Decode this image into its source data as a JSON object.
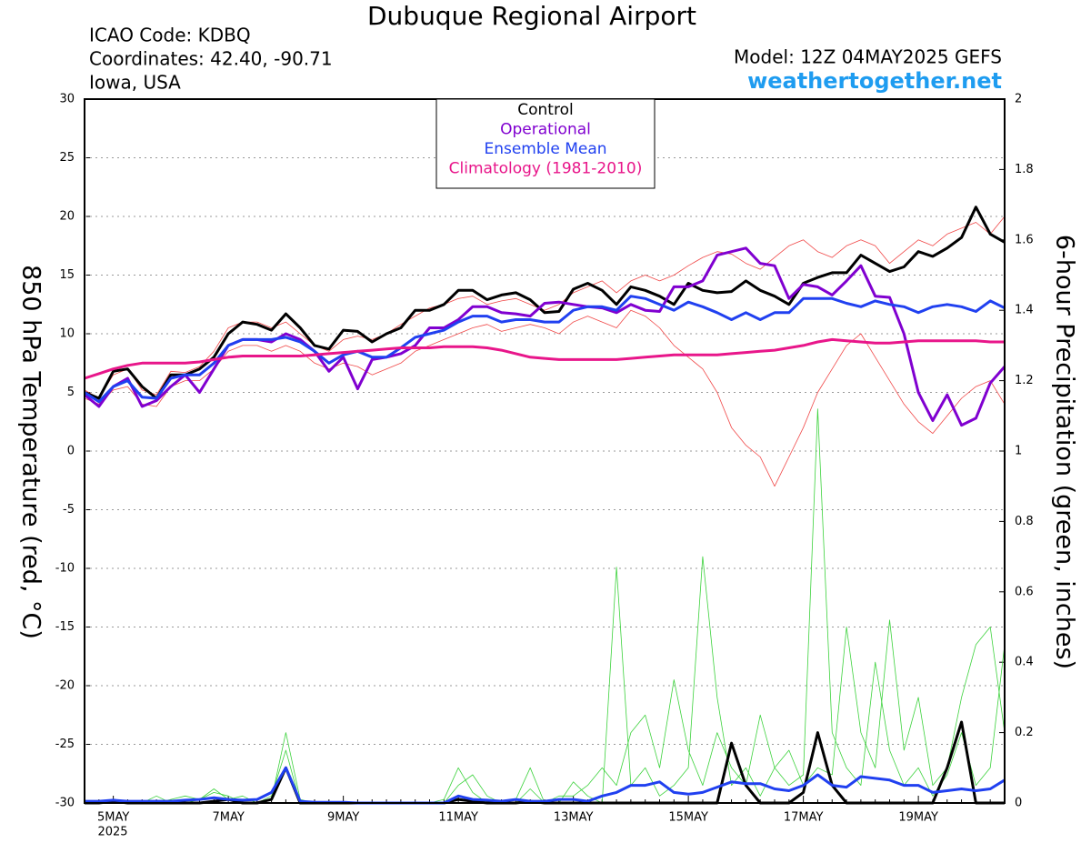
{
  "chart_data": {
    "type": "line",
    "title": "Dubuque Regional Airport",
    "info": [
      "ICAO Code: KDBQ",
      "Coordinates: 42.40, -90.71",
      "Iowa, USA"
    ],
    "model": "Model: 12Z 04MAY2025 GEFS",
    "source": "weathertogether.net",
    "ylabel": "850 hPa Temperature (red, °C)",
    "y2label": "6-hour Precipitation (green, inches)",
    "year_label": "2025",
    "grid": true,
    "ylim": [
      -30,
      30
    ],
    "yticks": [
      -30,
      -25,
      -20,
      -15,
      -10,
      -5,
      0,
      5,
      10,
      15,
      20,
      25,
      30
    ],
    "y2lim": [
      0,
      2
    ],
    "y2ticks": [
      0,
      0.2,
      0.4,
      0.6,
      0.8,
      1,
      1.2,
      1.4,
      1.6,
      1.8,
      2
    ],
    "categories": [
      null,
      null,
      "5MAY",
      null,
      null,
      null,
      null,
      null,
      null,
      null,
      "7MAY",
      null,
      null,
      null,
      null,
      null,
      null,
      null,
      "9MAY",
      null,
      null,
      null,
      null,
      null,
      null,
      null,
      "11MAY",
      null,
      null,
      null,
      null,
      null,
      null,
      null,
      "13MAY",
      null,
      null,
      null,
      null,
      null,
      null,
      null,
      "15MAY",
      null,
      null,
      null,
      null,
      null,
      null,
      null,
      "17MAY",
      null,
      null,
      null,
      null,
      null,
      null,
      null,
      "19MAY",
      null,
      null,
      null,
      null,
      null,
      null
    ],
    "members": [
      {
        "color": "#f04848",
        "values": [
          5.2,
          4.5,
          6.5,
          7,
          5.2,
          4.8,
          6.8,
          6.7,
          7.2,
          8.5,
          10.5,
          11,
          11,
          10.5,
          11,
          10,
          9,
          8.5,
          9.5,
          9.8,
          9.5,
          10,
          10.8,
          11.5,
          12.2,
          12.5,
          13,
          13.2,
          12.5,
          12.8,
          13,
          12.5,
          12,
          12.5,
          13.5,
          14,
          14.5,
          13.5,
          14.5,
          15,
          14.5,
          15,
          15.8,
          16.5,
          17,
          16.8,
          16,
          15.5,
          16.5,
          17.5,
          18,
          17,
          16.5,
          17.5,
          18,
          17.5,
          16,
          17,
          18,
          17.5,
          18.5,
          19,
          19.5,
          18.5,
          20
        ]
      },
      {
        "color": "#f04848",
        "values": [
          4.5,
          4,
          5.2,
          5.5,
          4,
          3.8,
          5.5,
          6,
          6,
          7,
          8.5,
          9,
          9,
          8.5,
          9,
          8.5,
          7.5,
          7,
          7.5,
          7.2,
          6.5,
          7,
          7.5,
          8.5,
          9,
          9.5,
          10,
          10.5,
          10.8,
          10.2,
          10.5,
          10.8,
          10.5,
          10,
          11,
          11.5,
          11,
          10.5,
          12,
          11.5,
          10.5,
          9,
          8,
          7,
          5,
          2,
          0.5,
          -0.5,
          -3,
          -0.5,
          2,
          5,
          7,
          9,
          10,
          8,
          6,
          4,
          2.5,
          1.5,
          3,
          4.5,
          5.5,
          6,
          4
        ]
      },
      {
        "color": "#3cd23c",
        "axis": "y2",
        "values": [
          0,
          0,
          0.01,
          0,
          0,
          0.02,
          0,
          0,
          0.01,
          0.03,
          0.02,
          0,
          0,
          0.02,
          0.15,
          0,
          0,
          0,
          0,
          0,
          0,
          0,
          0,
          0,
          0,
          0.01,
          0.1,
          0.03,
          0,
          0,
          0,
          0.04,
          0,
          0,
          0.06,
          0.02,
          0,
          0.67,
          0.05,
          0.1,
          0.02,
          0.05,
          0.1,
          0.7,
          0.3,
          0.05,
          0.1,
          0.02,
          0.1,
          0.05,
          0.08,
          1.12,
          0.2,
          0.1,
          0.05,
          0.4,
          0.15,
          0.05,
          0.1,
          0.02,
          0.08,
          0.2,
          0.05,
          0.1,
          0.45
        ]
      },
      {
        "color": "#3cd23c",
        "axis": "y2",
        "values": [
          0,
          0,
          0,
          0,
          0,
          0,
          0.01,
          0.02,
          0.01,
          0.04,
          0.01,
          0.02,
          0,
          0.01,
          0.2,
          0.01,
          0,
          0,
          0,
          0,
          0,
          0,
          0,
          0,
          0,
          0,
          0.05,
          0.08,
          0.02,
          0,
          0.01,
          0.1,
          0,
          0.02,
          0.02,
          0.05,
          0.1,
          0.05,
          0.2,
          0.25,
          0.1,
          0.35,
          0.15,
          0.05,
          0.2,
          0.1,
          0.05,
          0.25,
          0.1,
          0.15,
          0.05,
          0.1,
          0.08,
          0.5,
          0.2,
          0.1,
          0.52,
          0.15,
          0.3,
          0.05,
          0.1,
          0.3,
          0.45,
          0.5,
          0.2
        ]
      }
    ],
    "series": [
      {
        "name": "Control",
        "color": "#000000",
        "values": [
          5,
          4.5,
          6.8,
          7,
          5.5,
          4.5,
          6.5,
          6.5,
          7,
          8,
          10,
          11,
          10.8,
          10.3,
          11.7,
          10.5,
          9,
          8.7,
          10.3,
          10.2,
          9.3,
          10,
          10.5,
          12,
          12,
          12.5,
          13.7,
          13.7,
          12.9,
          13.3,
          13.5,
          12.9,
          11.8,
          11.9,
          13.8,
          14.3,
          13.7,
          12.5,
          14,
          13.7,
          13.2,
          12.5,
          14.3,
          13.7,
          13.5,
          13.6,
          14.5,
          13.7,
          13.2,
          12.5,
          14.3,
          14.8,
          15.2,
          15.2,
          16.7,
          16,
          15.3,
          15.7,
          17,
          16.6,
          17.3,
          18.2,
          20.8,
          18.5,
          17.8
        ]
      },
      {
        "name": "Operational",
        "color": "#8000d0",
        "values": [
          4.8,
          3.8,
          5.5,
          6.2,
          3.8,
          4.3,
          5.5,
          6.5,
          5,
          7,
          9,
          9.5,
          9.5,
          9.3,
          10,
          9.5,
          8.5,
          6.8,
          8,
          5.3,
          7.8,
          8,
          8.3,
          9,
          10.5,
          10.5,
          11.2,
          12.3,
          12.3,
          11.8,
          11.7,
          11.5,
          12.6,
          12.7,
          12.5,
          12.3,
          12.2,
          11.8,
          12.5,
          12,
          11.9,
          14,
          14,
          14.5,
          16.7,
          17,
          17.3,
          16,
          15.8,
          13,
          14.2,
          14,
          13.3,
          14.5,
          15.8,
          13.2,
          13.1,
          10,
          5,
          2.6,
          4.8,
          2.2,
          2.8,
          5.8,
          7.2
        ]
      },
      {
        "name": "Ensemble Mean",
        "color": "#2040f0",
        "values": [
          5,
          4.2,
          5.5,
          6,
          4.6,
          4.5,
          6.2,
          6.5,
          6.5,
          7.5,
          9,
          9.5,
          9.5,
          9.5,
          9.7,
          9.3,
          8.5,
          7.5,
          8.2,
          8.5,
          8,
          8,
          8.8,
          9.7,
          10,
          10.3,
          11,
          11.5,
          11.5,
          11,
          11.2,
          11.2,
          11,
          11,
          12,
          12.3,
          12.3,
          12,
          13.2,
          13,
          12.5,
          12,
          12.7,
          12.3,
          11.8,
          11.2,
          11.8,
          11.2,
          11.8,
          11.8,
          13,
          13,
          13,
          12.6,
          12.3,
          12.8,
          12.5,
          12.3,
          11.8,
          12.3,
          12.5,
          12.3,
          11.9,
          12.8,
          12.2
        ]
      },
      {
        "name": "Climatology (1981-2010)",
        "color": "#e8168a",
        "values": [
          6.2,
          6.6,
          7,
          7.3,
          7.5,
          7.5,
          7.5,
          7.5,
          7.6,
          7.8,
          8,
          8.1,
          8.1,
          8.1,
          8.1,
          8.1,
          8.2,
          8.3,
          8.4,
          8.5,
          8.6,
          8.7,
          8.8,
          8.8,
          8.8,
          8.9,
          8.9,
          8.9,
          8.8,
          8.6,
          8.3,
          8,
          7.9,
          7.8,
          7.8,
          7.8,
          7.8,
          7.8,
          7.9,
          8,
          8.1,
          8.2,
          8.2,
          8.2,
          8.2,
          8.3,
          8.4,
          8.5,
          8.6,
          8.8,
          9,
          9.3,
          9.5,
          9.4,
          9.3,
          9.2,
          9.2,
          9.3,
          9.4,
          9.4,
          9.4,
          9.4,
          9.4,
          9.3,
          9.3
        ]
      },
      {
        "color": "#000000",
        "axis": "y2",
        "values": [
          0,
          0,
          0.005,
          0,
          0,
          0,
          0,
          0,
          0,
          0.005,
          0.01,
          0,
          0,
          0.01,
          0.1,
          0,
          0,
          0,
          0,
          0,
          0,
          0,
          0,
          0,
          0,
          0,
          0.01,
          0.005,
          0,
          0,
          0,
          0.005,
          0,
          0,
          0,
          0,
          0,
          0,
          0,
          0,
          0,
          0,
          0,
          0,
          0,
          0.17,
          0.05,
          0,
          0,
          0,
          0.03,
          0.2,
          0.05,
          0,
          0,
          0,
          0,
          0,
          0,
          0,
          0.1,
          0.23,
          0,
          0,
          0
        ]
      },
      {
        "color": "#2040f0",
        "axis": "y2",
        "values": [
          0.005,
          0.005,
          0.008,
          0.005,
          0.005,
          0.005,
          0.005,
          0.008,
          0.01,
          0.015,
          0.01,
          0.008,
          0.01,
          0.03,
          0.1,
          0.005,
          0.002,
          0.002,
          0.002,
          0,
          0,
          0,
          0,
          0,
          0,
          0,
          0.02,
          0.01,
          0.008,
          0.005,
          0.01,
          0.005,
          0.005,
          0.01,
          0.01,
          0.005,
          0.02,
          0.03,
          0.05,
          0.05,
          0.06,
          0.03,
          0.025,
          0.03,
          0.045,
          0.06,
          0.055,
          0.055,
          0.04,
          0.035,
          0.05,
          0.08,
          0.05,
          0.045,
          0.075,
          0.07,
          0.065,
          0.05,
          0.05,
          0.03,
          0.035,
          0.04,
          0.035,
          0.04,
          0.065
        ]
      }
    ]
  }
}
